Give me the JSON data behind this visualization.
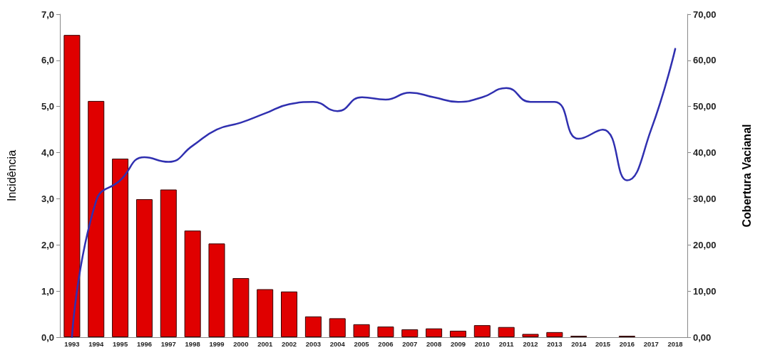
{
  "chart_data": {
    "type": "bar",
    "ylabel": "Incidência",
    "y2label": "Cobertura Vacianal",
    "categories": [
      "1993",
      "1994",
      "1995",
      "1996",
      "1997",
      "1998",
      "1999",
      "2000",
      "2001",
      "2002",
      "2003",
      "2004",
      "2005",
      "2006",
      "2007",
      "2008",
      "2009",
      "2010",
      "2011",
      "2012",
      "2013",
      "2014",
      "2015",
      "2016",
      "2017",
      "2018"
    ],
    "series": [
      {
        "color": "#e00000",
        "values": [
          6.55,
          5.12,
          3.87,
          2.99,
          3.2,
          2.31,
          2.03,
          1.28,
          1.04,
          0.99,
          0.45,
          0.41,
          0.28,
          0.23,
          0.17,
          0.19,
          0.14,
          0.26,
          0.22,
          0.07,
          0.11,
          0.03,
          null,
          0.03,
          null,
          null
        ]
      },
      {
        "type": "line",
        "axis": "y2",
        "color": "#3030b0",
        "values": [
          0,
          29.5,
          34,
          39,
          38,
          41.5,
          45,
          46.5,
          48.5,
          50.5,
          51,
          49,
          52,
          51.5,
          53,
          52,
          51,
          52,
          54,
          51,
          51,
          43,
          45,
          34,
          45,
          62.5
        ]
      }
    ],
    "ylim": [
      0,
      7
    ],
    "yticks": [
      {
        "value": 0,
        "label": "0,0"
      },
      {
        "value": 1,
        "label": "1,0"
      },
      {
        "value": 2,
        "label": "2,0"
      },
      {
        "value": 3,
        "label": "3,0"
      },
      {
        "value": 4,
        "label": "4,0"
      },
      {
        "value": 5,
        "label": "5,0"
      },
      {
        "value": 6,
        "label": "6,0"
      },
      {
        "value": 7,
        "label": "7,0"
      }
    ],
    "y2lim": [
      0,
      70
    ],
    "y2ticks": [
      {
        "value": 0,
        "label": "0,00"
      },
      {
        "value": 10,
        "label": "10,00"
      },
      {
        "value": 20,
        "label": "20,00"
      },
      {
        "value": 30,
        "label": "30,00"
      },
      {
        "value": 40,
        "label": "40,00"
      },
      {
        "value": 50,
        "label": "50,00"
      },
      {
        "value": 60,
        "label": "60,00"
      },
      {
        "value": 70,
        "label": "70,00"
      }
    ],
    "grid": false,
    "marker": "none",
    "line_style": "solid"
  }
}
